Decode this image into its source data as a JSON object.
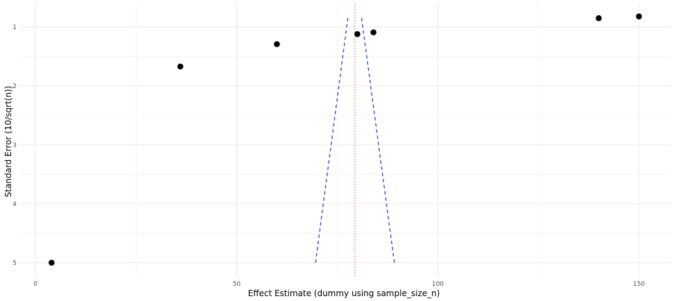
{
  "chart_data": {
    "type": "scatter",
    "title": "",
    "xlabel": "Effect Estimate (dummy using sample_size_n)",
    "ylabel": "Standard Error (10/sqrt(n))",
    "xlim": [
      -4,
      158
    ],
    "ylim": [
      0.6,
      5.25
    ],
    "y_reversed": true,
    "grid": true,
    "x_ticks": [
      0,
      50,
      100,
      150
    ],
    "x_tick_labels": [
      "0",
      "50",
      "100",
      "150"
    ],
    "y_ticks": [
      1,
      2,
      3,
      4,
      5
    ],
    "y_tick_labels": [
      "1",
      "2",
      "3",
      "4",
      "5"
    ],
    "points": [
      {
        "x": 4,
        "y": 5.0
      },
      {
        "x": 36,
        "y": 1.67
      },
      {
        "x": 60,
        "y": 1.29
      },
      {
        "x": 80,
        "y": 1.12
      },
      {
        "x": 84,
        "y": 1.09
      },
      {
        "x": 140,
        "y": 0.85
      },
      {
        "x": 150,
        "y": 0.82
      }
    ],
    "reference_line": {
      "x": 79.4,
      "color": "#e8645a",
      "style": "dotted"
    },
    "funnel_lines": {
      "color": "#3333dd",
      "style": "dashed",
      "left": [
        [
          69.6,
          5.0
        ],
        [
          77.7,
          0.82
        ]
      ],
      "right": [
        [
          89.2,
          5.0
        ],
        [
          81.0,
          0.82
        ]
      ]
    },
    "point_color": "#000000"
  }
}
